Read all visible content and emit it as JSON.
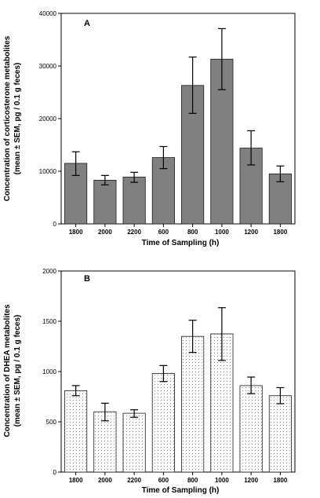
{
  "colors": {
    "bar_fill_a": "#808080",
    "bar_stroke": "#1a1a1a",
    "dot_fill_b": "#8a8a8a",
    "axis": "#000000"
  },
  "chart_data": [
    {
      "type": "bar",
      "panel_label": "A",
      "categories": [
        "1800",
        "2000",
        "2200",
        "600",
        "800",
        "1000",
        "1200",
        "1800"
      ],
      "series": [
        {
          "values": [
            11500,
            8300,
            8900,
            12600,
            26300,
            31300,
            14400,
            9500
          ],
          "error_low": [
            9200,
            7400,
            7900,
            10500,
            21000,
            25500,
            11200,
            8000
          ],
          "error_high": [
            13700,
            9200,
            9800,
            14700,
            31700,
            37100,
            17700,
            11000
          ]
        }
      ],
      "xlabel": "Time of Sampling (h)",
      "ylabel_line1": "Concentration of corticosterone metabolites",
      "ylabel_line2": "(mean ± SEM, pg / 0.1 g feces)",
      "ylim": [
        0,
        40000
      ],
      "yticks": [
        "0",
        "10000",
        "20000",
        "30000",
        "40000"
      ],
      "grid": false,
      "fill": "solid gray"
    },
    {
      "type": "bar",
      "panel_label": "B",
      "categories": [
        "1800",
        "2000",
        "2200",
        "600",
        "800",
        "1000",
        "1200",
        "1800"
      ],
      "series": [
        {
          "values": [
            810,
            600,
            585,
            980,
            1350,
            1375,
            860,
            760
          ],
          "error_low": [
            760,
            510,
            545,
            900,
            1190,
            1110,
            780,
            680
          ],
          "error_high": [
            860,
            685,
            620,
            1060,
            1510,
            1635,
            945,
            840
          ]
        }
      ],
      "xlabel": "Time of Sampling (h)",
      "ylabel_line1": "Concentration of DHEA metabolites",
      "ylabel_line2": "(mean ± SEM, pg / 0.1 g feces)",
      "ylim": [
        0,
        2000
      ],
      "yticks": [
        "0",
        "500",
        "1000",
        "1500",
        "2000"
      ],
      "grid": false,
      "fill": "dotted pattern"
    }
  ]
}
